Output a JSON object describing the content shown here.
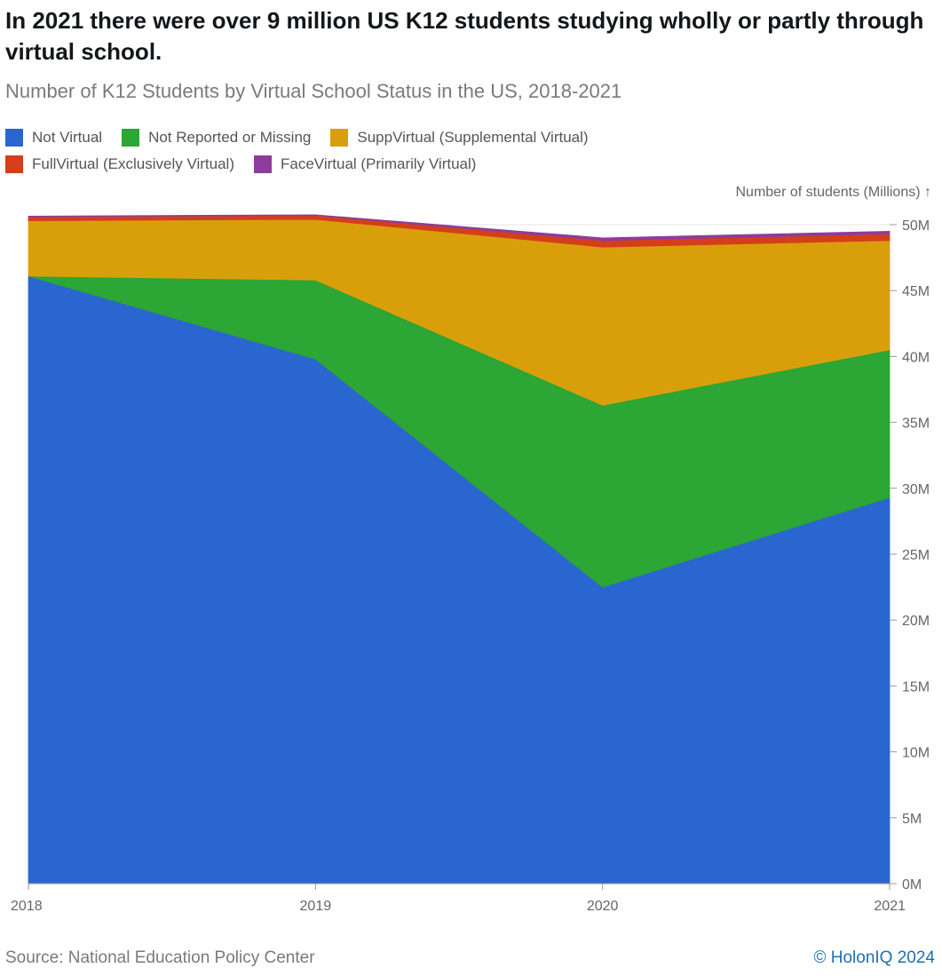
{
  "header": {
    "title": "In 2021 there were over 9 million US K12 students studying wholly or partly through virtual school.",
    "subtitle": "Number of K12 Students by Virtual School Status in the US, 2018-2021"
  },
  "legend": [
    {
      "label": "Not Virtual",
      "color": "#2a66cf"
    },
    {
      "label": "Not Reported or Missing",
      "color": "#2ca634"
    },
    {
      "label": "SuppVirtual (Supplemental Virtual)",
      "color": "#d99f0a"
    },
    {
      "label": "FullVirtual (Exclusively Virtual)",
      "color": "#d43f1a"
    },
    {
      "label": "FaceVirtual (Primarily Virtual)",
      "color": "#8e3c9b"
    }
  ],
  "yaxis_title": "Number of students (Millions) ↑",
  "chart_data": {
    "type": "area",
    "stacked": true,
    "title": "Number of K12 Students by Virtual School Status in the US, 2018-2021",
    "xlabel": "",
    "ylabel": "Number of students (Millions)",
    "x": [
      "2018",
      "2019",
      "2020",
      "2021"
    ],
    "ylim": [
      0,
      50
    ],
    "yticks": [
      "0M",
      "5M",
      "10M",
      "15M",
      "20M",
      "25M",
      "30M",
      "35M",
      "40M",
      "45M",
      "50M"
    ],
    "series": [
      {
        "name": "Not Virtual",
        "color": "#2a66cf",
        "values": [
          46.1,
          39.8,
          22.5,
          29.3
        ]
      },
      {
        "name": "Not Reported or Missing",
        "color": "#2ca634",
        "values": [
          0.0,
          6.0,
          13.8,
          11.2
        ]
      },
      {
        "name": "SuppVirtual (Supplemental Virtual)",
        "color": "#d99f0a",
        "values": [
          4.2,
          4.6,
          12.0,
          8.3
        ]
      },
      {
        "name": "FullVirtual (Exclusively Virtual)",
        "color": "#d43f1a",
        "values": [
          0.3,
          0.3,
          0.5,
          0.5
        ]
      },
      {
        "name": "FaceVirtual (Primarily Virtual)",
        "color": "#8e3c9b",
        "values": [
          0.05,
          0.05,
          0.2,
          0.2
        ]
      }
    ]
  },
  "footer": {
    "source": "Source: National Education Policy Center",
    "credit": "© HolonIQ 2024"
  }
}
